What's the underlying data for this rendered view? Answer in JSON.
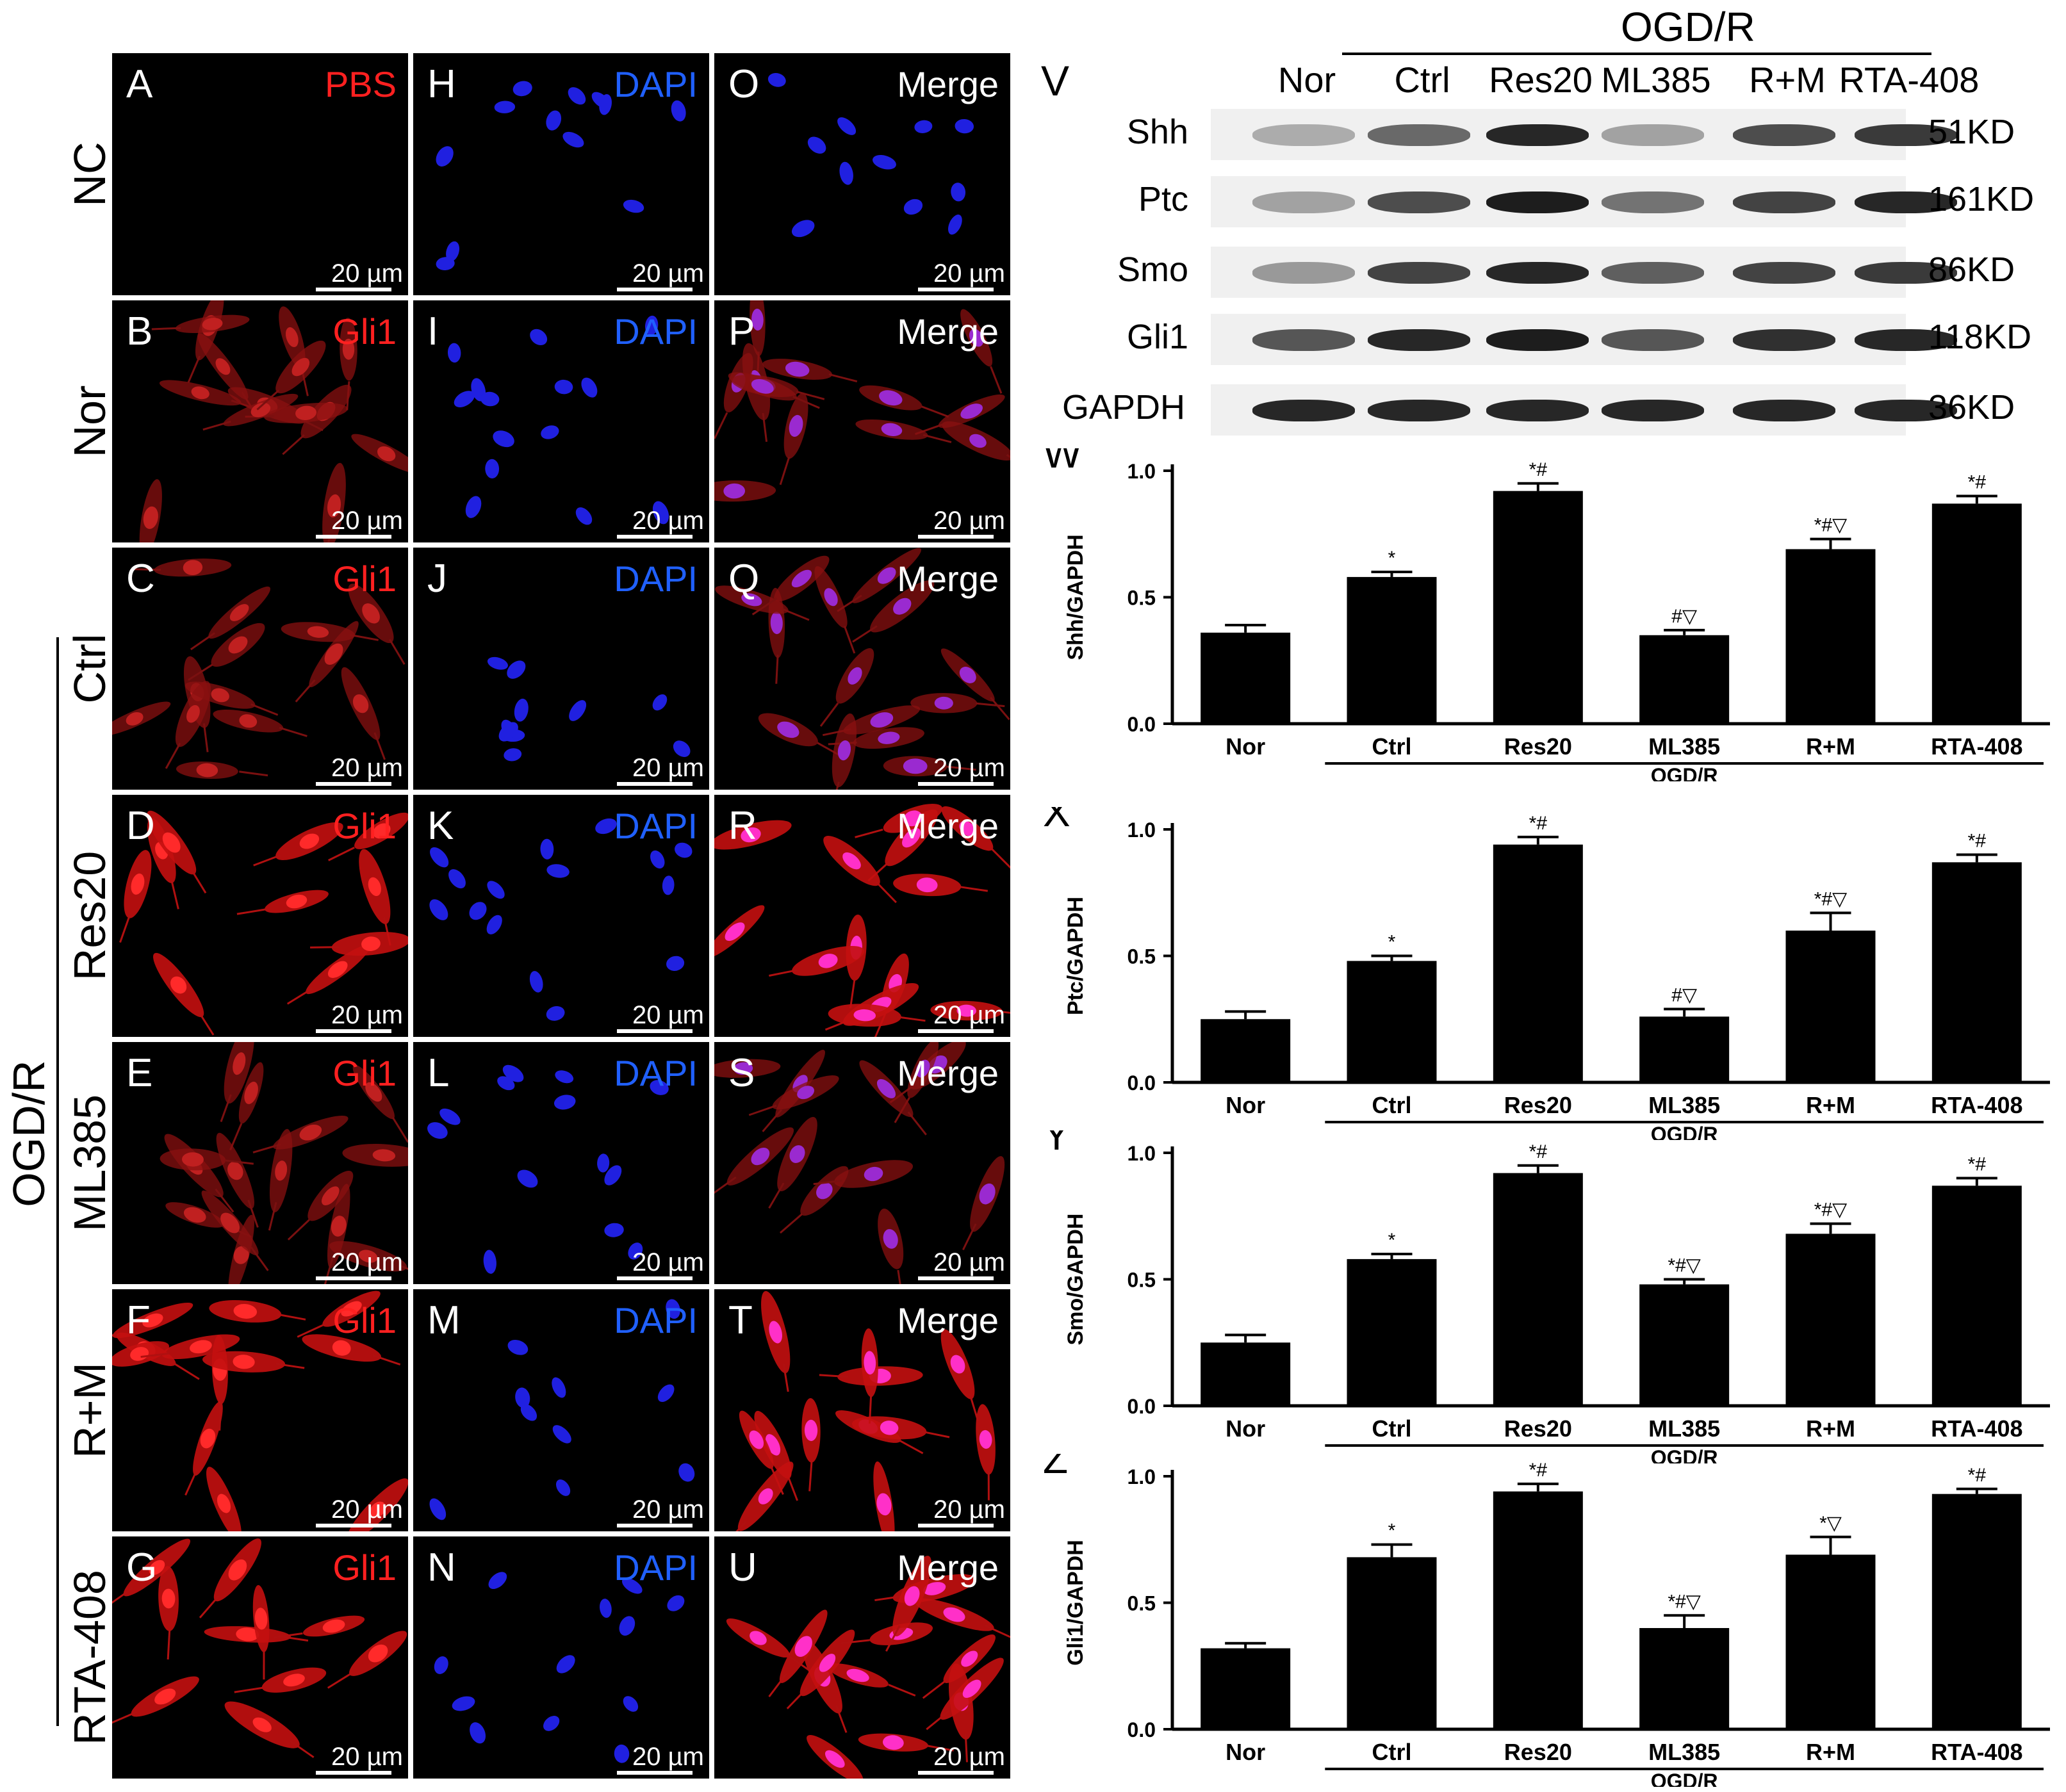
{
  "figure": {
    "panels_if": [
      {
        "letter": "A",
        "label": "PBS",
        "label_color": "#ff2020",
        "scale": "20 µm",
        "kind": "empty"
      },
      {
        "letter": "H",
        "label": "DAPI",
        "label_color": "#2060ff",
        "scale": "20 µm",
        "kind": "dapi"
      },
      {
        "letter": "O",
        "label": "Merge",
        "label_color": "#ffffff",
        "scale": "20 µm",
        "kind": "merge-blue"
      },
      {
        "letter": "B",
        "label": "Gli1",
        "label_color": "#ff2020",
        "scale": "20 µm",
        "kind": "red"
      },
      {
        "letter": "I",
        "label": "DAPI",
        "label_color": "#2060ff",
        "scale": "20 µm",
        "kind": "dapi"
      },
      {
        "letter": "P",
        "label": "Merge",
        "label_color": "#ffffff",
        "scale": "20 µm",
        "kind": "merge"
      },
      {
        "letter": "C",
        "label": "Gli1",
        "label_color": "#ff2020",
        "scale": "20 µm",
        "kind": "red"
      },
      {
        "letter": "J",
        "label": "DAPI",
        "label_color": "#2060ff",
        "scale": "20 µm",
        "kind": "dapi"
      },
      {
        "letter": "Q",
        "label": "Merge",
        "label_color": "#ffffff",
        "scale": "20 µm",
        "kind": "merge"
      },
      {
        "letter": "D",
        "label": "Gli1",
        "label_color": "#ff2020",
        "scale": "20 µm",
        "kind": "red-bright"
      },
      {
        "letter": "K",
        "label": "DAPI",
        "label_color": "#2060ff",
        "scale": "20 µm",
        "kind": "dapi"
      },
      {
        "letter": "R",
        "label": "Merge",
        "label_color": "#ffffff",
        "scale": "20 µm",
        "kind": "merge-bright"
      },
      {
        "letter": "E",
        "label": "Gli1",
        "label_color": "#ff2020",
        "scale": "20 µm",
        "kind": "red"
      },
      {
        "letter": "L",
        "label": "DAPI",
        "label_color": "#2060ff",
        "scale": "20 µm",
        "kind": "dapi"
      },
      {
        "letter": "S",
        "label": "Merge",
        "label_color": "#ffffff",
        "scale": "20 µm",
        "kind": "merge"
      },
      {
        "letter": "F",
        "label": "Gli1",
        "label_color": "#ff2020",
        "scale": "20 µm",
        "kind": "red-bright"
      },
      {
        "letter": "M",
        "label": "DAPI",
        "label_color": "#2060ff",
        "scale": "20 µm",
        "kind": "dapi"
      },
      {
        "letter": "T",
        "label": "Merge",
        "label_color": "#ffffff",
        "scale": "20 µm",
        "kind": "merge-bright"
      },
      {
        "letter": "G",
        "label": "Gli1",
        "label_color": "#ff2020",
        "scale": "20 µm",
        "kind": "red-bright"
      },
      {
        "letter": "N",
        "label": "DAPI",
        "label_color": "#2060ff",
        "scale": "20 µm",
        "kind": "dapi"
      },
      {
        "letter": "U",
        "label": "Merge",
        "label_color": "#ffffff",
        "scale": "20 µm",
        "kind": "merge-bright"
      }
    ],
    "row_labels": [
      "NC",
      "Nor",
      "Ctrl",
      "Res20",
      "ML385",
      "R+M",
      "RTA-408"
    ],
    "group_label": "OGD/R",
    "western": {
      "panel_letter": "V",
      "group_label": "OGD/R",
      "lanes": [
        "Nor",
        "Ctrl",
        "Res20",
        "ML385",
        "R+M",
        "RTA-408"
      ],
      "proteins": [
        {
          "name": "Shh",
          "kd": "51KD",
          "intensity": [
            0.15,
            0.5,
            0.85,
            0.2,
            0.65,
            0.75
          ]
        },
        {
          "name": "Ptc",
          "kd": "161KD",
          "intensity": [
            0.2,
            0.65,
            0.9,
            0.45,
            0.7,
            0.85
          ]
        },
        {
          "name": "Smo",
          "kd": "86KD",
          "intensity": [
            0.25,
            0.7,
            0.85,
            0.55,
            0.7,
            0.75
          ]
        },
        {
          "name": "Gli1",
          "kd": "118KD",
          "intensity": [
            0.6,
            0.85,
            0.9,
            0.6,
            0.8,
            0.85
          ]
        },
        {
          "name": "GAPDH",
          "kd": "36KD",
          "intensity": [
            0.85,
            0.85,
            0.85,
            0.85,
            0.85,
            0.85
          ]
        }
      ]
    }
  },
  "chart_data": [
    {
      "type": "bar",
      "panel_letter": "W",
      "ylabel": "Shh/GAPDH",
      "group_label": "OGD/R",
      "categories": [
        "Nor",
        "Ctrl",
        "Res20",
        "ML385",
        "R+M",
        "RTA-408"
      ],
      "values": [
        0.36,
        0.58,
        0.92,
        0.35,
        0.69,
        0.87
      ],
      "errors": [
        0.03,
        0.02,
        0.03,
        0.02,
        0.04,
        0.03
      ],
      "annotations": [
        "",
        "*",
        "*#",
        "#▽",
        "*#▽",
        "*#"
      ],
      "ylim": [
        0,
        1.0
      ],
      "yticks": [
        "0.0",
        "0.5",
        "1.0"
      ]
    },
    {
      "type": "bar",
      "panel_letter": "X",
      "ylabel": "Ptc/GAPDH",
      "group_label": "OGD/R",
      "categories": [
        "Nor",
        "Ctrl",
        "Res20",
        "ML385",
        "R+M",
        "RTA-408"
      ],
      "values": [
        0.25,
        0.48,
        0.94,
        0.26,
        0.6,
        0.87
      ],
      "errors": [
        0.03,
        0.02,
        0.03,
        0.03,
        0.07,
        0.03
      ],
      "annotations": [
        "",
        "*",
        "*#",
        "#▽",
        "*#▽",
        "*#"
      ],
      "ylim": [
        0,
        1.0
      ],
      "yticks": [
        "0.0",
        "0.5",
        "1.0"
      ]
    },
    {
      "type": "bar",
      "panel_letter": "Y",
      "ylabel": "Smo/GAPDH",
      "group_label": "OGD/R",
      "categories": [
        "Nor",
        "Ctrl",
        "Res20",
        "ML385",
        "R+M",
        "RTA-408"
      ],
      "values": [
        0.25,
        0.58,
        0.92,
        0.48,
        0.68,
        0.87
      ],
      "errors": [
        0.03,
        0.02,
        0.03,
        0.02,
        0.04,
        0.03
      ],
      "annotations": [
        "",
        "*",
        "*#",
        "*#▽",
        "*#▽",
        "*#"
      ],
      "ylim": [
        0,
        1.0
      ],
      "yticks": [
        "0.0",
        "0.5",
        "1.0"
      ]
    },
    {
      "type": "bar",
      "panel_letter": "Z",
      "ylabel": "Gli1/GAPDH",
      "group_label": "OGD/R",
      "categories": [
        "Nor",
        "Ctrl",
        "Res20",
        "ML385",
        "R+M",
        "RTA-408"
      ],
      "values": [
        0.32,
        0.68,
        0.94,
        0.4,
        0.69,
        0.93
      ],
      "errors": [
        0.02,
        0.05,
        0.03,
        0.05,
        0.07,
        0.02
      ],
      "annotations": [
        "",
        "*",
        "*#",
        "*#▽",
        "*▽",
        "*#"
      ],
      "ylim": [
        0,
        1.0
      ],
      "yticks": [
        "0.0",
        "0.5",
        "1.0"
      ]
    }
  ]
}
